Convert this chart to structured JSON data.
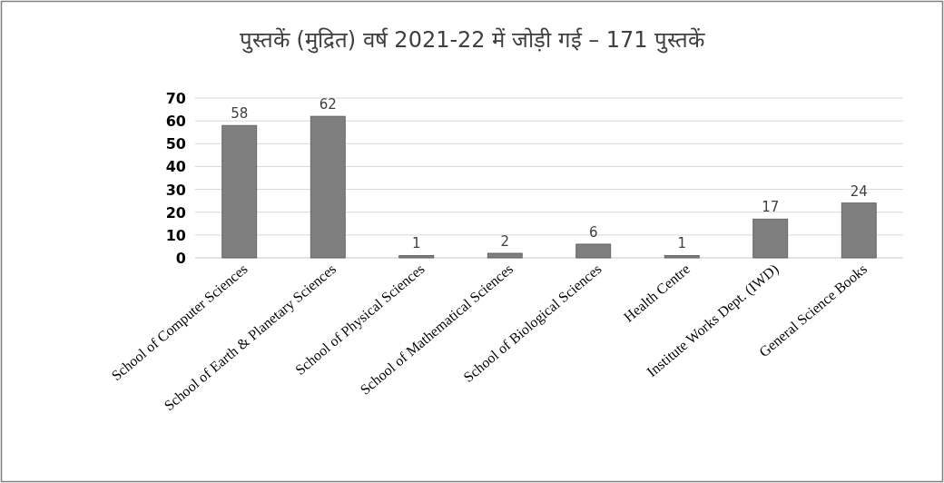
{
  "chart_data": {
    "type": "bar",
    "title": "पुस्तकें (मुद्रित) वर्ष 2021-22 में जोड़ी गई – 171 पुस्तकें",
    "categories": [
      "School of Computer Sciences",
      "School of Earth & Planetary Sciences",
      "School of Physical Sciences",
      "School of Mathematical Sciences",
      "School of Biological Sciences",
      "Health Centre",
      "Institute Works Dept. (IWD)",
      "General Science Books"
    ],
    "values": [
      58,
      62,
      1,
      2,
      6,
      1,
      17,
      24
    ],
    "color": "#7f7f7f",
    "ylim": [
      0,
      70
    ],
    "yticks": [
      0,
      10,
      20,
      30,
      40,
      50,
      60,
      70
    ],
    "grid": "y",
    "data_labels": true
  }
}
